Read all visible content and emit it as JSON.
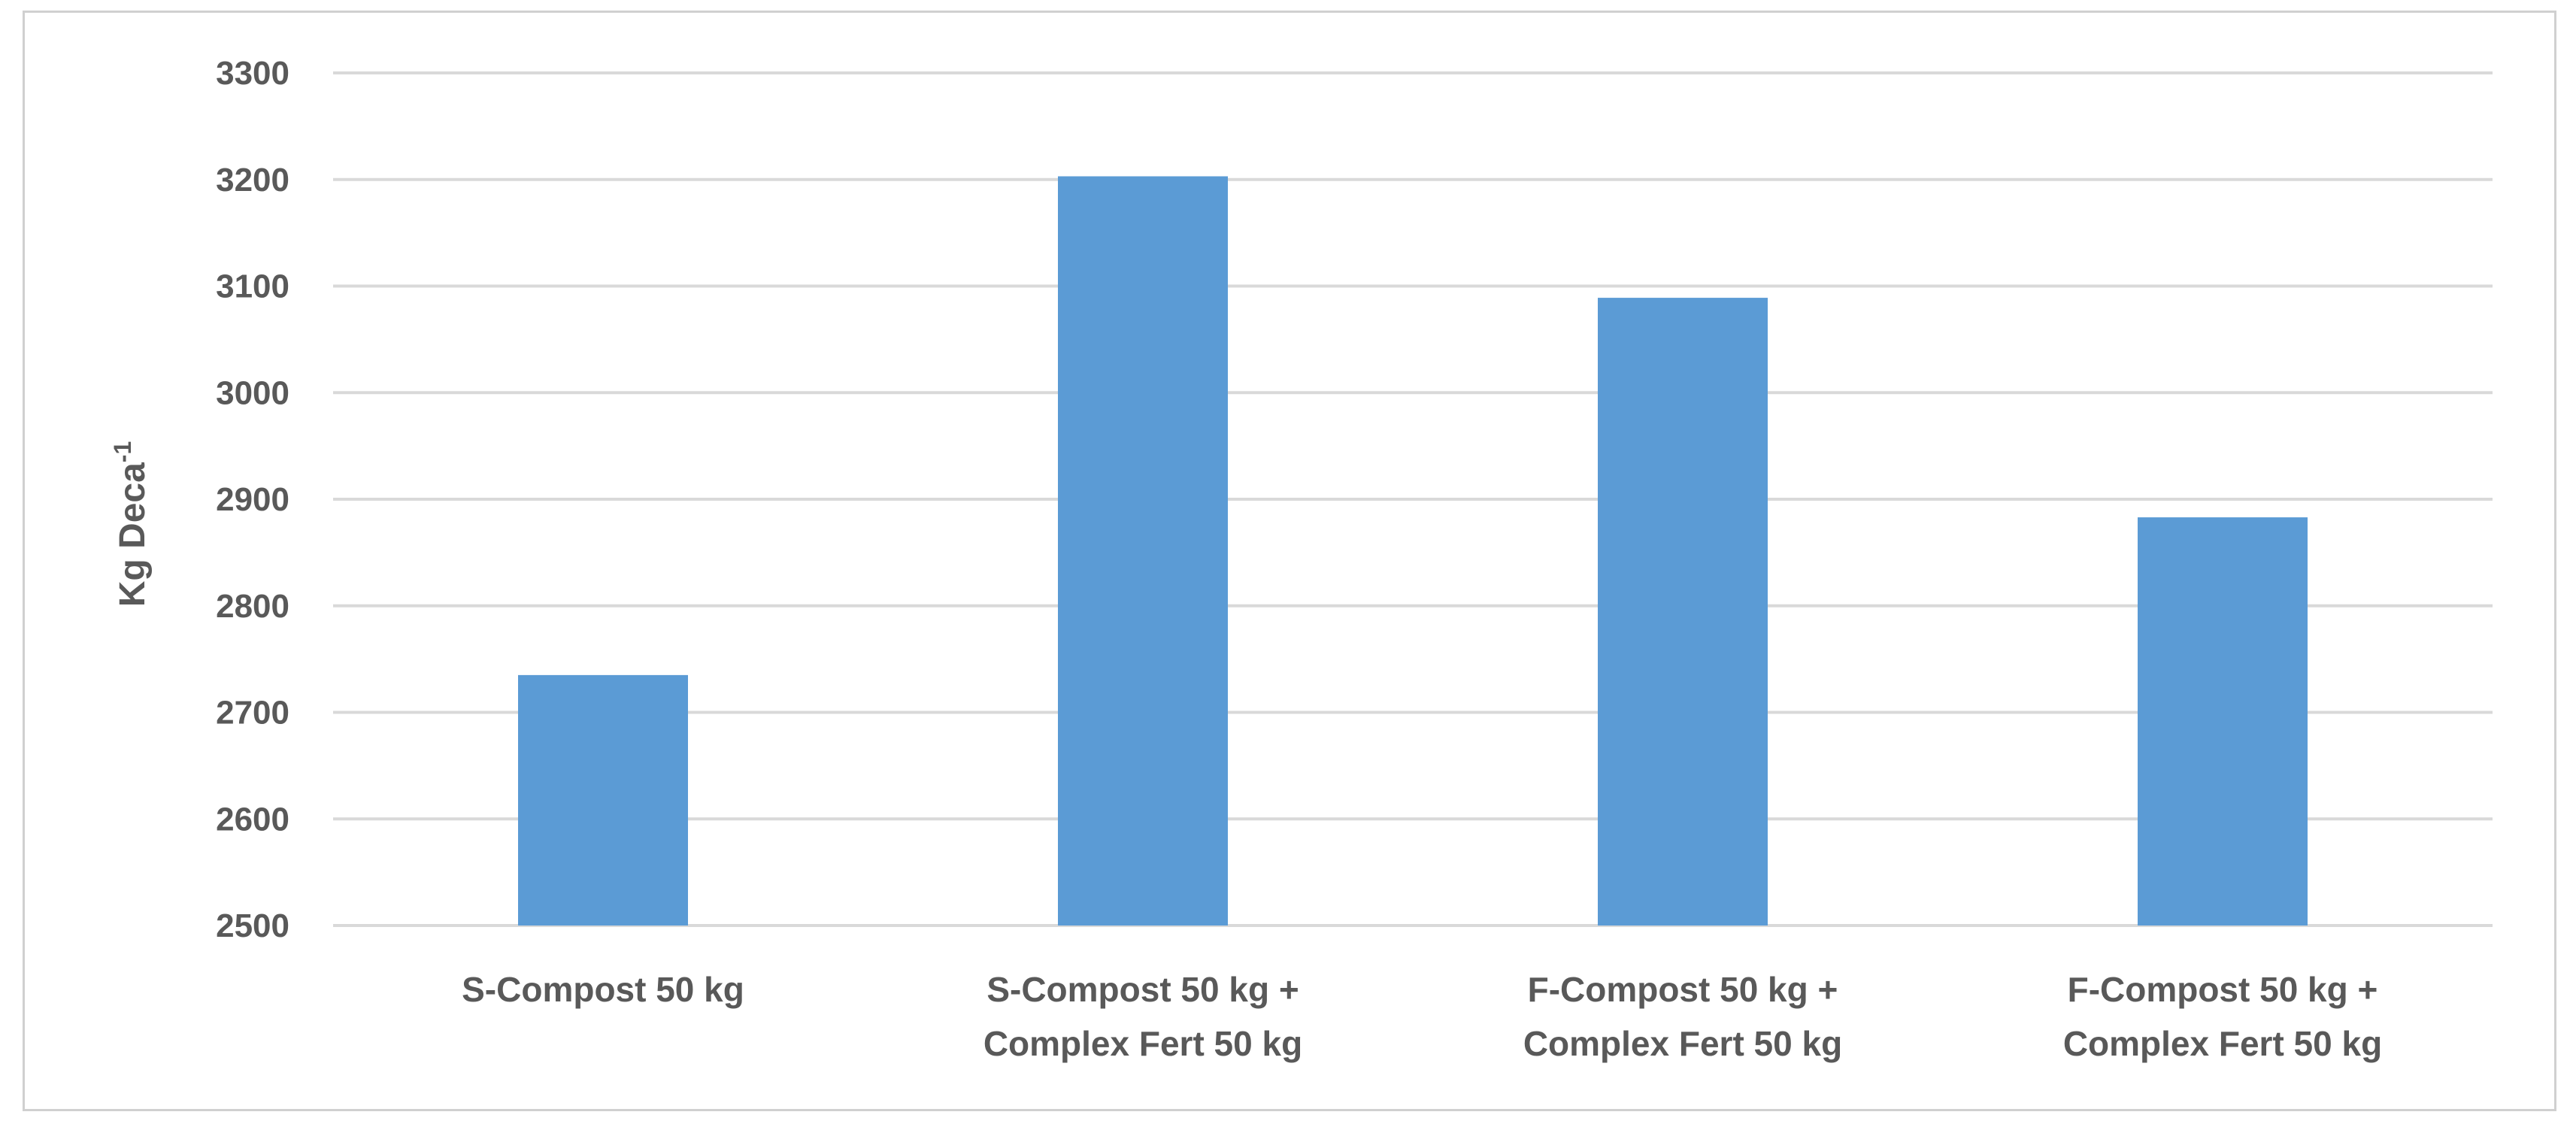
{
  "chart_data": {
    "type": "bar",
    "title": "",
    "xlabel": "",
    "ylabel": "Kg Deca",
    "ylabel_superscript": "-1",
    "categories": [
      [
        "S-Compost 50 kg"
      ],
      [
        "S-Compost 50 kg +",
        "Complex Fert 50 kg"
      ],
      [
        "F-Compost 50 kg +",
        "Complex Fert 50 kg"
      ],
      [
        "F-Compost 50 kg +",
        "Complex Fert 50 kg"
      ]
    ],
    "values": [
      2735,
      3203,
      3089,
      2883
    ],
    "ylim": [
      2500,
      3300
    ],
    "yticks": [
      "2500",
      "2600",
      "2700",
      "2800",
      "2900",
      "3000",
      "3100",
      "3200",
      "3300"
    ],
    "grid": true,
    "legend": "none",
    "bar_color": "#5b9bd5"
  }
}
